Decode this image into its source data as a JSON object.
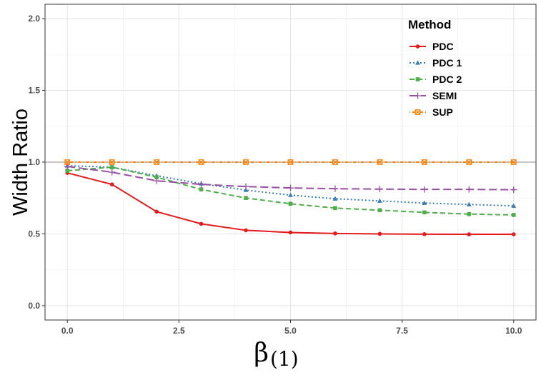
{
  "chart_data": {
    "type": "line",
    "title": "",
    "xlabel": "β",
    "xlabel_subscript": "(1)",
    "ylabel": "Width Ratio",
    "xlim": [
      -0.5,
      10.5
    ],
    "ylim": [
      -0.1,
      2.1
    ],
    "x_ticks": [
      0,
      2.5,
      5,
      7.5,
      10
    ],
    "x_tick_labels": [
      "0.0",
      "2.5",
      "5.0",
      "7.5",
      "10.0"
    ],
    "y_ticks": [
      0,
      0.5,
      1,
      1.5,
      2
    ],
    "y_tick_labels": [
      "0.0",
      "0.5",
      "1.0",
      "1.5",
      "2.0"
    ],
    "reference_line": 1.0,
    "grid": true,
    "legend_title": "Method",
    "legend_position": "top-right",
    "x": [
      0,
      1,
      2,
      3,
      4,
      5,
      6,
      7,
      8,
      9,
      10
    ],
    "series": [
      {
        "name": "PDC",
        "color": "#e41a1c",
        "dash": "solid",
        "marker": "circle",
        "values": [
          0.925,
          0.845,
          0.655,
          0.57,
          0.525,
          0.51,
          0.503,
          0.5,
          0.498,
          0.497,
          0.497
        ]
      },
      {
        "name": "PDC 1",
        "color": "#377eb8",
        "dash": "dotted",
        "marker": "triangle",
        "values": [
          0.975,
          0.965,
          0.905,
          0.85,
          0.805,
          0.77,
          0.745,
          0.73,
          0.715,
          0.705,
          0.695
        ]
      },
      {
        "name": "PDC 2",
        "color": "#4daf4a",
        "dash": "dashed",
        "marker": "square",
        "values": [
          0.94,
          0.965,
          0.895,
          0.81,
          0.75,
          0.71,
          0.68,
          0.665,
          0.65,
          0.638,
          0.632
        ]
      },
      {
        "name": "SEMI",
        "color": "#984ea3",
        "dash": "longdash",
        "marker": "plus",
        "values": [
          0.97,
          0.93,
          0.87,
          0.845,
          0.83,
          0.82,
          0.815,
          0.812,
          0.81,
          0.81,
          0.808
        ]
      },
      {
        "name": "SUP",
        "color": "#ff7f00",
        "dash": "dotdash",
        "marker": "boxcross",
        "values": [
          1.0,
          1.0,
          1.0,
          1.0,
          1.0,
          1.0,
          1.0,
          1.0,
          1.0,
          1.0,
          1.0
        ]
      }
    ]
  }
}
